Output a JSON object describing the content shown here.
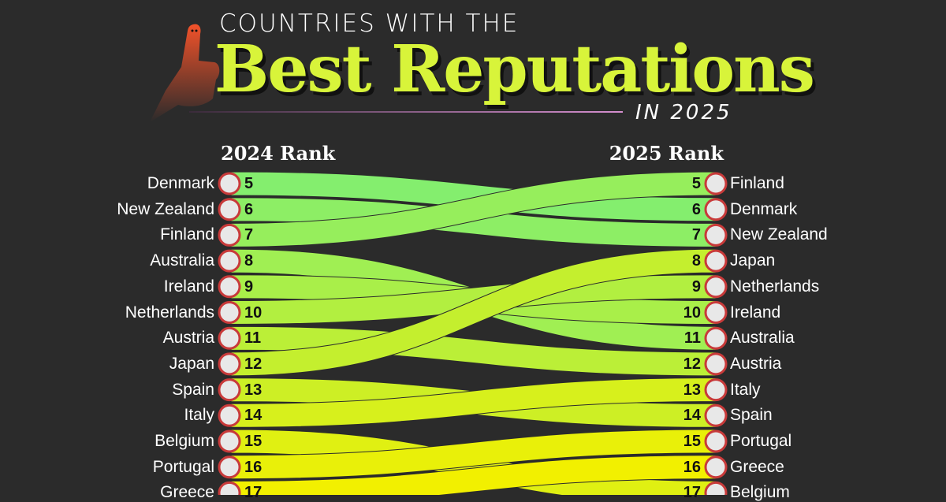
{
  "header": {
    "kicker": "COUNTRIES WITH THE",
    "title": "Best Reputations",
    "subtitle": "IN 2025",
    "icon": "thumbs-up-icon"
  },
  "chart_data": {
    "type": "bump",
    "title": "Countries with the Best Reputations in 2025",
    "left_label": "2024 Rank",
    "right_label": "2025 Rank",
    "rows": [
      {
        "country": "Denmark",
        "rank_2024": 5,
        "rank_2025": 6
      },
      {
        "country": "New Zealand",
        "rank_2024": 6,
        "rank_2025": 7
      },
      {
        "country": "Finland",
        "rank_2024": 7,
        "rank_2025": 5
      },
      {
        "country": "Australia",
        "rank_2024": 8,
        "rank_2025": 11
      },
      {
        "country": "Ireland",
        "rank_2024": 9,
        "rank_2025": 10
      },
      {
        "country": "Netherlands",
        "rank_2024": 10,
        "rank_2025": 9
      },
      {
        "country": "Austria",
        "rank_2024": 11,
        "rank_2025": 12
      },
      {
        "country": "Japan",
        "rank_2024": 12,
        "rank_2025": 8
      },
      {
        "country": "Spain",
        "rank_2024": 13,
        "rank_2025": 14
      },
      {
        "country": "Italy",
        "rank_2024": 14,
        "rank_2025": 13
      },
      {
        "country": "Belgium",
        "rank_2024": 15,
        "rank_2025": 17
      },
      {
        "country": "Portugal",
        "rank_2024": 16,
        "rank_2025": 15
      },
      {
        "country": "Greece",
        "rank_2024": 17,
        "rank_2025": 16
      }
    ],
    "colors": {
      "top": "#84ee6e",
      "bottom": "#f2f000"
    }
  }
}
